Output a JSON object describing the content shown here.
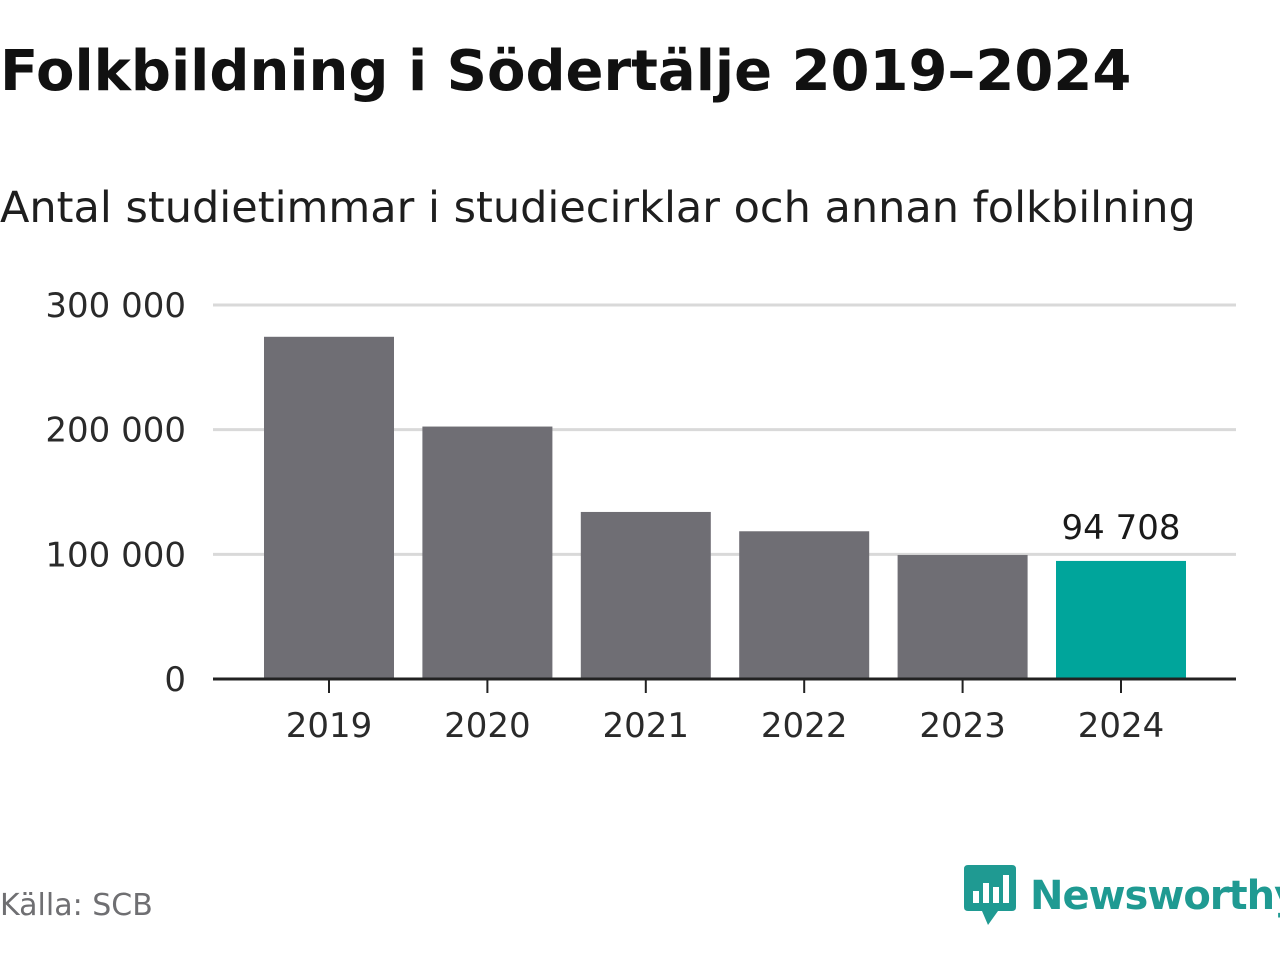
{
  "colors": {
    "bar_default": "#6f6e74",
    "bar_highlight": "#00a59b",
    "gridline": "#d9d9d9",
    "axis": "#222222",
    "brand": "#1f9a92"
  },
  "header": {
    "title": "Folkbildning i Södertälje 2019–2024",
    "subtitle": "Antal studietimmar i studiecirklar och annan folkbilning"
  },
  "footer": {
    "source": "Källa: SCB",
    "brand_name": "Newsworthy",
    "brand_icon": "newsworthy-logo-icon"
  },
  "chart_data": {
    "type": "bar",
    "title": "Folkbildning i Södertälje 2019–2024",
    "subtitle": "Antal studietimmar i studiecirklar och annan folkbilning",
    "categories": [
      "2019",
      "2020",
      "2021",
      "2022",
      "2023",
      "2024"
    ],
    "values": [
      274500,
      202500,
      134000,
      118500,
      99500,
      94708
    ],
    "highlight_index": 5,
    "data_labels": [
      {
        "index": 5,
        "text": "94 708"
      }
    ],
    "ylim": [
      0,
      300000
    ],
    "yticks": [
      0,
      100000,
      200000,
      300000
    ],
    "ytick_labels": [
      "0",
      "100 000",
      "200 000",
      "300 000"
    ],
    "xlabel": "",
    "ylabel": "",
    "grid": true,
    "legend": "none"
  }
}
